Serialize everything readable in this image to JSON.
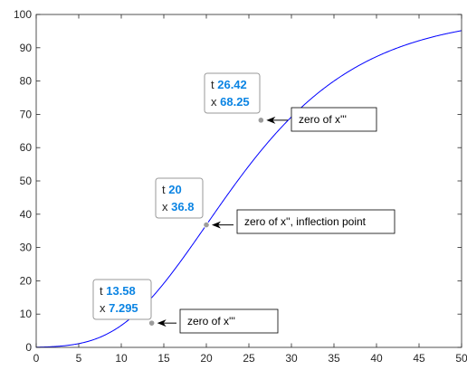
{
  "chart_data": {
    "type": "line",
    "title": "",
    "xlabel": "",
    "ylabel": "",
    "xlim": [
      0,
      50
    ],
    "ylim": [
      0,
      100
    ],
    "xticks": [
      0,
      5,
      10,
      15,
      20,
      25,
      30,
      35,
      40,
      45,
      50
    ],
    "yticks": [
      0,
      10,
      20,
      30,
      40,
      50,
      60,
      70,
      80,
      90,
      100
    ],
    "grid": false,
    "series": [
      {
        "color": "#0000ff",
        "model": {
          "form": "gompertz",
          "asymptote": 100,
          "b": 0.1,
          "t0": 20
        },
        "x": [
          0,
          5,
          8,
          10,
          12,
          13.58,
          15,
          17,
          20,
          23,
          26.42,
          30,
          35,
          40,
          45,
          50
        ],
        "y": [
          0.0,
          0.0,
          0.2,
          0.8,
          3.5,
          7.3,
          13.9,
          24.8,
          36.8,
          47.6,
          68.3,
          80.5,
          91.5,
          96.2,
          98.2,
          99.1
        ]
      }
    ],
    "datatips": [
      {
        "t_label": "t",
        "x_label": "x",
        "t_value": "13.58",
        "x_value": "7.295",
        "t": 13.58,
        "x": 7.295
      },
      {
        "t_label": "t",
        "x_label": "x",
        "t_value": "20",
        "x_value": "36.8",
        "t": 20,
        "x": 36.8
      },
      {
        "t_label": "t",
        "x_label": "x",
        "t_value": "26.42",
        "x_value": "68.25",
        "t": 26.42,
        "x": 68.25
      }
    ],
    "annotations": [
      {
        "text": "zero of x'''",
        "point_index": 0
      },
      {
        "text": "zero of x'', inflection point",
        "point_index": 1
      },
      {
        "text": "zero of x'''",
        "point_index": 2
      }
    ]
  }
}
